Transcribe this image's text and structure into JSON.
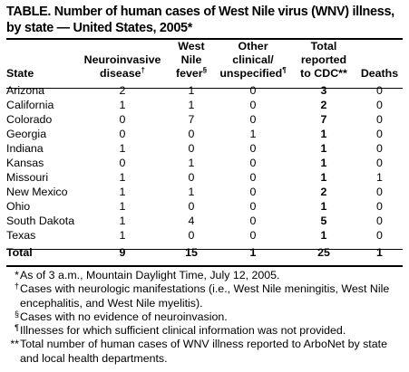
{
  "title": "TABLE. Number of human cases of West Nile virus (WNV) illness, by state — United States, 2005*",
  "headers": {
    "state": "State",
    "neuro_1": "Neuroinvasive",
    "neuro_2": "disease",
    "neuro_mark": "†",
    "fever_1": "West",
    "fever_2": "Nile",
    "fever_3": "fever",
    "fever_mark": "§",
    "other_1": "Other",
    "other_2": "clinical/",
    "other_3": "unspecified",
    "other_mark": "¶",
    "total_1": "Total",
    "total_2": "reported",
    "total_3": "to CDC**",
    "deaths": "Deaths"
  },
  "rows": [
    {
      "state": "Arizona",
      "neuro": "2",
      "fever": "1",
      "other": "0",
      "total": "3",
      "deaths": "0"
    },
    {
      "state": "California",
      "neuro": "1",
      "fever": "1",
      "other": "0",
      "total": "2",
      "deaths": "0"
    },
    {
      "state": "Colorado",
      "neuro": "0",
      "fever": "7",
      "other": "0",
      "total": "7",
      "deaths": "0"
    },
    {
      "state": "Georgia",
      "neuro": "0",
      "fever": "0",
      "other": "1",
      "total": "1",
      "deaths": "0"
    },
    {
      "state": "Indiana",
      "neuro": "1",
      "fever": "0",
      "other": "0",
      "total": "1",
      "deaths": "0"
    },
    {
      "state": "Kansas",
      "neuro": "0",
      "fever": "1",
      "other": "0",
      "total": "1",
      "deaths": "0"
    },
    {
      "state": "Missouri",
      "neuro": "1",
      "fever": "0",
      "other": "0",
      "total": "1",
      "deaths": "1"
    },
    {
      "state": "New Mexico",
      "neuro": "1",
      "fever": "1",
      "other": "0",
      "total": "2",
      "deaths": "0"
    },
    {
      "state": "Ohio",
      "neuro": "1",
      "fever": "0",
      "other": "0",
      "total": "1",
      "deaths": "0"
    },
    {
      "state": "South Dakota",
      "neuro": "1",
      "fever": "4",
      "other": "0",
      "total": "5",
      "deaths": "0"
    },
    {
      "state": "Texas",
      "neuro": "1",
      "fever": "0",
      "other": "0",
      "total": "1",
      "deaths": "0"
    }
  ],
  "total_row": {
    "state": "Total",
    "neuro": "9",
    "fever": "15",
    "other": "1",
    "total": "25",
    "deaths": "1"
  },
  "footnotes": [
    {
      "mark": "*",
      "text": "As of 3 a.m., Mountain Daylight Time, July 12, 2005."
    },
    {
      "mark": "†",
      "text": "Cases with neurologic manifestations (i.e., West Nile meningitis, West Nile encephalitis, and West Nile myelitis)."
    },
    {
      "mark": "§",
      "text": "Cases with no evidence of neuroinvasion."
    },
    {
      "mark": "¶",
      "text": "Illnesses for which sufficient clinical information was not provided."
    },
    {
      "mark": "**",
      "text": "Total number of human cases of WNV illness reported to ArboNet by state and local health departments."
    }
  ]
}
